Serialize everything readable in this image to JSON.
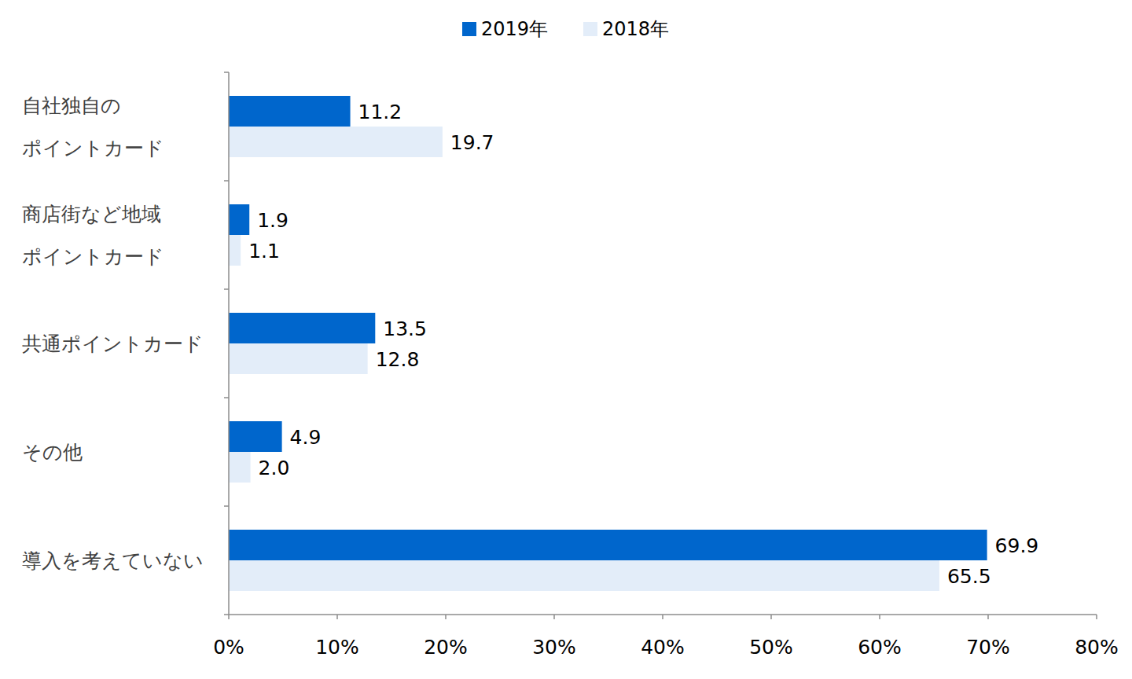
{
  "chart_data": {
    "type": "bar",
    "orientation": "horizontal",
    "categories": [
      "自社独自の\nポイントカード",
      "商店街など地域\nポイントカード",
      "共通ポイントカード",
      "その他",
      "導入を考えていない"
    ],
    "series": [
      {
        "name": "2019年",
        "color": "#0066cc",
        "values": [
          11.2,
          1.9,
          13.5,
          4.9,
          69.9
        ],
        "value_labels": [
          "11.2",
          "1.9",
          "13.5",
          "4.9",
          "69.9"
        ]
      },
      {
        "name": "2018年",
        "color": "#e3edf9",
        "values": [
          19.7,
          1.1,
          12.8,
          2.0,
          65.5
        ],
        "value_labels": [
          "19.7",
          "1.1",
          "12.8",
          "2.0",
          "65.5"
        ]
      }
    ],
    "xlim": [
      0,
      80
    ],
    "xticks": [
      {
        "value": 0,
        "label": "0%"
      },
      {
        "value": 10,
        "label": "10%"
      },
      {
        "value": 20,
        "label": "20%"
      },
      {
        "value": 30,
        "label": "30%"
      },
      {
        "value": 40,
        "label": "40%"
      },
      {
        "value": 50,
        "label": "50%"
      },
      {
        "value": 60,
        "label": "60%"
      },
      {
        "value": 70,
        "label": "70%"
      },
      {
        "value": 80,
        "label": "80%"
      }
    ],
    "grid": false,
    "legend": "top",
    "data_labels": true
  }
}
